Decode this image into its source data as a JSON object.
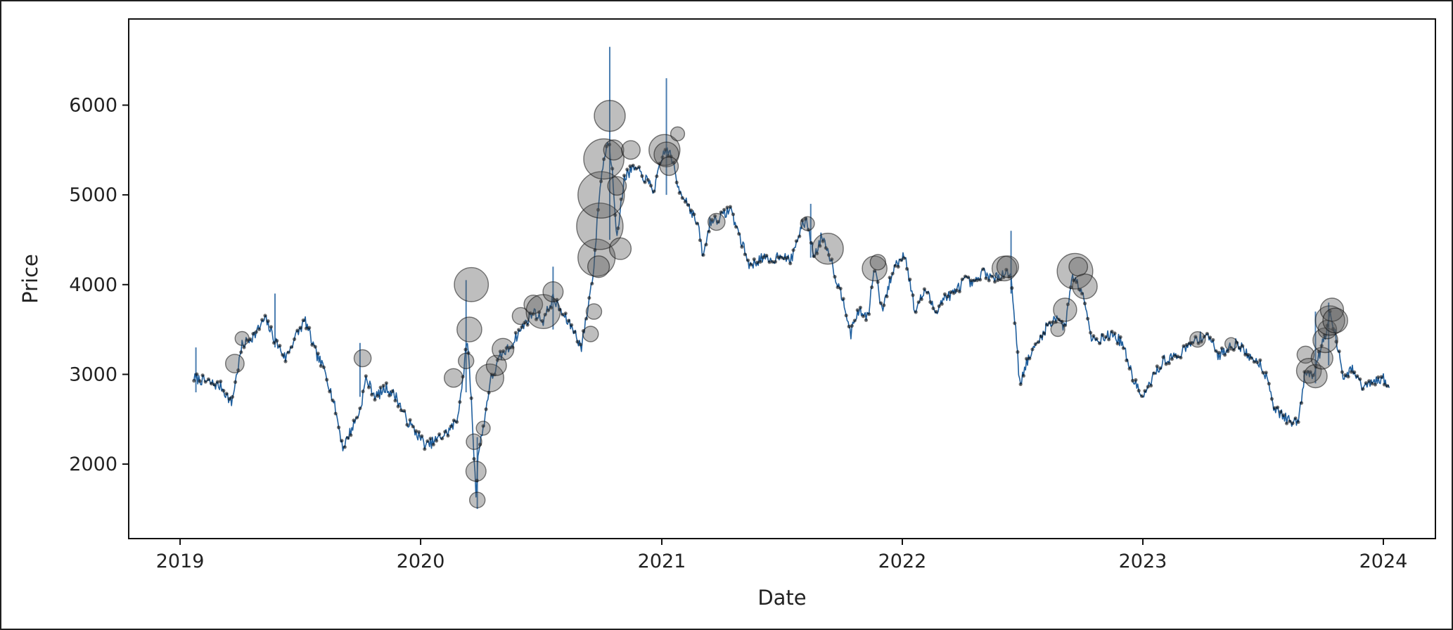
{
  "chart_data": {
    "type": "line",
    "title": "",
    "xlabel": "Date",
    "ylabel": "Price",
    "x_ticks": [
      "2019",
      "2020",
      "2021",
      "2022",
      "2023",
      "2024"
    ],
    "y_ticks": [
      2000,
      3000,
      4000,
      5000,
      6000
    ],
    "xlim": [
      "2018-10-15",
      "2024-03-20"
    ],
    "ylim": [
      1170,
      6960
    ],
    "grid": false,
    "legend": "none",
    "colors": {
      "line": "#1f5f9e",
      "markers": "#000000",
      "bubbles": "#555555"
    },
    "series": [
      {
        "data": [
          [
            "2019-01-22",
            2960
          ],
          [
            "2019-02-10",
            2920
          ],
          [
            "2019-03-05",
            2860
          ],
          [
            "2019-03-20",
            2680
          ],
          [
            "2019-04-05",
            3320
          ],
          [
            "2019-04-25",
            3450
          ],
          [
            "2019-05-10",
            3620
          ],
          [
            "2019-05-25",
            3380
          ],
          [
            "2019-06-10",
            3180
          ],
          [
            "2019-06-25",
            3420
          ],
          [
            "2019-07-10",
            3600
          ],
          [
            "2019-07-25",
            3250
          ],
          [
            "2019-08-10",
            3020
          ],
          [
            "2019-08-25",
            2600
          ],
          [
            "2019-09-05",
            2180
          ],
          [
            "2019-09-20",
            2420
          ],
          [
            "2019-10-01",
            2600
          ],
          [
            "2019-10-10",
            2950
          ],
          [
            "2019-10-25",
            2750
          ],
          [
            "2019-11-10",
            2850
          ],
          [
            "2019-11-25",
            2750
          ],
          [
            "2019-12-10",
            2500
          ],
          [
            "2019-12-25",
            2350
          ],
          [
            "2020-01-10",
            2200
          ],
          [
            "2020-01-25",
            2270
          ],
          [
            "2020-02-10",
            2350
          ],
          [
            "2020-02-25",
            2480
          ],
          [
            "2020-03-05",
            2950
          ],
          [
            "2020-03-12",
            3400
          ],
          [
            "2020-03-18",
            2700
          ],
          [
            "2020-03-22",
            2100
          ],
          [
            "2020-03-25",
            1650
          ],
          [
            "2020-03-28",
            2100
          ],
          [
            "2020-04-05",
            2400
          ],
          [
            "2020-04-15",
            2900
          ],
          [
            "2020-05-01",
            3200
          ],
          [
            "2020-05-15",
            3300
          ],
          [
            "2020-06-01",
            3500
          ],
          [
            "2020-06-20",
            3700
          ],
          [
            "2020-07-05",
            3600
          ],
          [
            "2020-07-20",
            3850
          ],
          [
            "2020-08-05",
            3650
          ],
          [
            "2020-08-20",
            3500
          ],
          [
            "2020-09-01",
            3300
          ],
          [
            "2020-09-10",
            3700
          ],
          [
            "2020-09-20",
            4200
          ],
          [
            "2020-09-28",
            5000
          ],
          [
            "2020-10-05",
            5400
          ],
          [
            "2020-10-12",
            5600
          ],
          [
            "2020-10-18",
            5300
          ],
          [
            "2020-10-25",
            4500
          ],
          [
            "2020-11-05",
            5200
          ],
          [
            "2020-11-20",
            5300
          ],
          [
            "2020-12-05",
            5200
          ],
          [
            "2020-12-20",
            5050
          ],
          [
            "2021-01-05",
            5500
          ],
          [
            "2021-01-15",
            5450
          ],
          [
            "2021-01-25",
            5100
          ],
          [
            "2021-02-10",
            4900
          ],
          [
            "2021-02-25",
            4650
          ],
          [
            "2021-03-05",
            4300
          ],
          [
            "2021-03-15",
            4700
          ],
          [
            "2021-04-01",
            4750
          ],
          [
            "2021-04-15",
            4850
          ],
          [
            "2021-05-01",
            4500
          ],
          [
            "2021-05-15",
            4200
          ],
          [
            "2021-06-01",
            4300
          ],
          [
            "2021-06-15",
            4250
          ],
          [
            "2021-07-01",
            4350
          ],
          [
            "2021-07-15",
            4250
          ],
          [
            "2021-08-01",
            4650
          ],
          [
            "2021-08-10",
            4700
          ],
          [
            "2021-08-20",
            4300
          ],
          [
            "2021-09-01",
            4550
          ],
          [
            "2021-09-10",
            4400
          ],
          [
            "2021-09-25",
            4000
          ],
          [
            "2021-10-05",
            3800
          ],
          [
            "2021-10-15",
            3450
          ],
          [
            "2021-10-25",
            3700
          ],
          [
            "2021-11-10",
            3650
          ],
          [
            "2021-11-20",
            4200
          ],
          [
            "2021-12-01",
            3700
          ],
          [
            "2021-12-10",
            3950
          ],
          [
            "2021-12-20",
            4200
          ],
          [
            "2022-01-05",
            4350
          ],
          [
            "2022-01-20",
            3700
          ],
          [
            "2022-02-05",
            3950
          ],
          [
            "2022-02-20",
            3700
          ],
          [
            "2022-03-05",
            3850
          ],
          [
            "2022-03-20",
            3900
          ],
          [
            "2022-04-05",
            4050
          ],
          [
            "2022-04-20",
            4000
          ],
          [
            "2022-05-05",
            4150
          ],
          [
            "2022-05-20",
            4050
          ],
          [
            "2022-06-05",
            4150
          ],
          [
            "2022-06-15",
            4100
          ],
          [
            "2022-06-22",
            3500
          ],
          [
            "2022-06-28",
            2900
          ],
          [
            "2022-07-10",
            3150
          ],
          [
            "2022-07-25",
            3350
          ],
          [
            "2022-08-10",
            3550
          ],
          [
            "2022-08-25",
            3650
          ],
          [
            "2022-09-05",
            3500
          ],
          [
            "2022-09-15",
            4100
          ],
          [
            "2022-09-25",
            4000
          ],
          [
            "2022-10-05",
            3850
          ],
          [
            "2022-10-15",
            3400
          ],
          [
            "2022-11-01",
            3400
          ],
          [
            "2022-11-15",
            3450
          ],
          [
            "2022-12-01",
            3350
          ],
          [
            "2022-12-15",
            3000
          ],
          [
            "2023-01-01",
            2720
          ],
          [
            "2023-01-15",
            2950
          ],
          [
            "2023-02-01",
            3150
          ],
          [
            "2023-02-20",
            3200
          ],
          [
            "2023-03-10",
            3300
          ],
          [
            "2023-03-25",
            3400
          ],
          [
            "2023-04-10",
            3450
          ],
          [
            "2023-04-25",
            3200
          ],
          [
            "2023-05-10",
            3300
          ],
          [
            "2023-05-25",
            3350
          ],
          [
            "2023-06-10",
            3200
          ],
          [
            "2023-06-25",
            3150
          ],
          [
            "2023-07-10",
            2950
          ],
          [
            "2023-07-20",
            2600
          ],
          [
            "2023-08-01",
            2550
          ],
          [
            "2023-08-15",
            2450
          ],
          [
            "2023-08-25",
            2500
          ],
          [
            "2023-09-05",
            3050
          ],
          [
            "2023-09-15",
            3000
          ],
          [
            "2023-09-25",
            3200
          ],
          [
            "2023-10-05",
            3450
          ],
          [
            "2023-10-12",
            3650
          ],
          [
            "2023-10-20",
            3450
          ],
          [
            "2023-11-01",
            2950
          ],
          [
            "2023-11-15",
            3050
          ],
          [
            "2023-12-01",
            2850
          ],
          [
            "2023-12-15",
            2900
          ],
          [
            "2024-01-01",
            2950
          ],
          [
            "2024-01-10",
            2850
          ]
        ]
      }
    ],
    "spikes": [
      [
        "2019-01-25",
        2800,
        3300
      ],
      [
        "2019-05-25",
        3300,
        3900
      ],
      [
        "2019-10-01",
        2750,
        3350
      ],
      [
        "2020-03-10",
        2800,
        4050
      ],
      [
        "2020-03-27",
        1500,
        2300
      ],
      [
        "2020-07-20",
        3500,
        4200
      ],
      [
        "2020-10-14",
        4500,
        6650
      ],
      [
        "2021-01-08",
        5000,
        6300
      ],
      [
        "2021-08-15",
        4300,
        4900
      ],
      [
        "2022-06-15",
        3900,
        4600
      ],
      [
        "2023-09-20",
        2900,
        3700
      ],
      [
        "2023-10-10",
        3100,
        3800
      ]
    ],
    "bubbles": [
      [
        "2019-03-25",
        3120,
        1.2
      ],
      [
        "2019-04-05",
        3400,
        0.9
      ],
      [
        "2019-10-05",
        3180,
        1.1
      ],
      [
        "2020-02-20",
        2960,
        1.2
      ],
      [
        "2020-03-10",
        3150,
        1.0
      ],
      [
        "2020-03-15",
        3500,
        1.6
      ],
      [
        "2020-03-18",
        4000,
        2.2
      ],
      [
        "2020-03-22",
        2250,
        1.0
      ],
      [
        "2020-03-25",
        1920,
        1.3
      ],
      [
        "2020-03-27",
        1600,
        1.0
      ],
      [
        "2020-04-05",
        2400,
        0.9
      ],
      [
        "2020-04-15",
        2960,
        1.8
      ],
      [
        "2020-04-25",
        3100,
        1.3
      ],
      [
        "2020-05-05",
        3280,
        1.4
      ],
      [
        "2020-06-01",
        3650,
        1.1
      ],
      [
        "2020-06-20",
        3780,
        1.2
      ],
      [
        "2020-07-05",
        3700,
        2.2
      ],
      [
        "2020-07-20",
        3920,
        1.3
      ],
      [
        "2020-09-15",
        3450,
        1.0
      ],
      [
        "2020-09-20",
        3700,
        1.0
      ],
      [
        "2020-09-24",
        4300,
        2.4
      ],
      [
        "2020-09-27",
        4200,
        1.4
      ],
      [
        "2020-09-29",
        4650,
        3.0
      ],
      [
        "2020-10-01",
        5000,
        3.0
      ],
      [
        "2020-10-05",
        5400,
        2.6
      ],
      [
        "2020-10-14",
        5880,
        2.0
      ],
      [
        "2020-10-20",
        5500,
        1.3
      ],
      [
        "2020-10-25",
        5100,
        1.2
      ],
      [
        "2020-10-30",
        4400,
        1.4
      ],
      [
        "2020-11-15",
        5500,
        1.2
      ],
      [
        "2021-01-05",
        5500,
        2.0
      ],
      [
        "2021-01-08",
        5450,
        1.6
      ],
      [
        "2021-01-12",
        5320,
        1.2
      ],
      [
        "2021-01-25",
        5680,
        0.9
      ],
      [
        "2021-03-25",
        4700,
        1.1
      ],
      [
        "2021-08-10",
        4680,
        0.9
      ],
      [
        "2021-09-10",
        4400,
        2.0
      ],
      [
        "2021-11-20",
        4180,
        1.6
      ],
      [
        "2021-11-25",
        4250,
        1.0
      ],
      [
        "2022-06-05",
        4180,
        1.6
      ],
      [
        "2022-06-10",
        4200,
        1.4
      ],
      [
        "2022-08-25",
        3500,
        0.9
      ],
      [
        "2022-09-05",
        3720,
        1.5
      ],
      [
        "2022-09-20",
        4150,
        2.3
      ],
      [
        "2022-09-25",
        4200,
        1.2
      ],
      [
        "2022-10-05",
        3980,
        1.6
      ],
      [
        "2023-03-25",
        3390,
        1.0
      ],
      [
        "2023-05-15",
        3340,
        0.8
      ],
      [
        "2023-09-05",
        3220,
        1.1
      ],
      [
        "2023-09-10",
        3040,
        1.6
      ],
      [
        "2023-09-20",
        2980,
        1.5
      ],
      [
        "2023-09-30",
        3180,
        1.4
      ],
      [
        "2023-10-05",
        3380,
        1.6
      ],
      [
        "2023-10-08",
        3500,
        1.2
      ],
      [
        "2023-10-12",
        3600,
        1.9
      ],
      [
        "2023-10-15",
        3720,
        1.5
      ],
      [
        "2023-10-20",
        3600,
        1.6
      ]
    ]
  }
}
